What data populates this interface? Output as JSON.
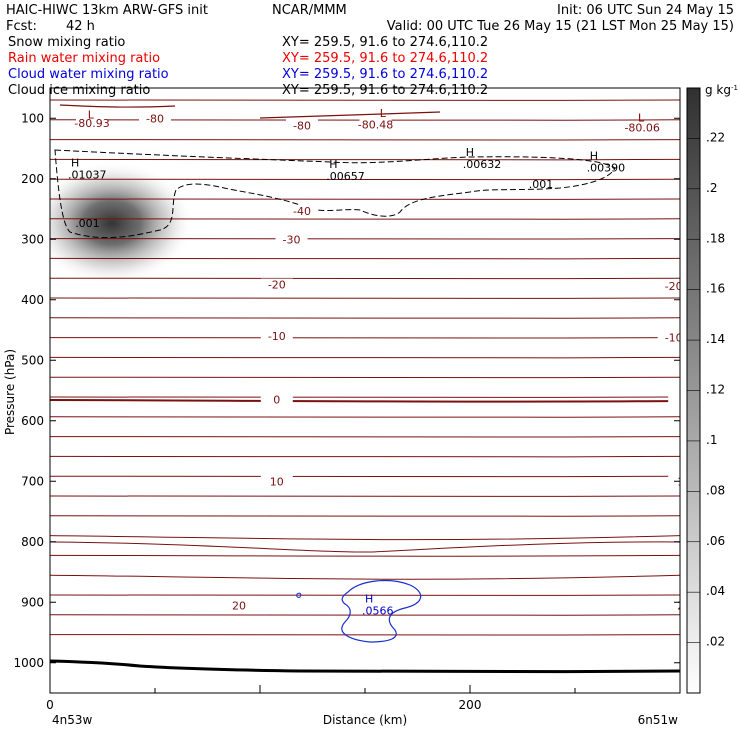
{
  "header": {
    "title": "HAIC-HIWC 13km ARW-GFS init",
    "org": "NCAR/MMM",
    "init": "Init: 06 UTC Sun 24 May 15",
    "fcst_label": "Fcst:",
    "fcst_value": "42 h",
    "valid": "Valid: 00 UTC Tue 26 May 15 (21 LST Mon 25 May 15)"
  },
  "fields": [
    {
      "name": "Snow mixing ratio",
      "xy": "XY= 259.5, 91.6 to 274.6,110.2",
      "color": "#000000"
    },
    {
      "name": "Rain water mixing ratio",
      "xy": "XY= 259.5, 91.6 to 274.6,110.2",
      "color": "#ee0000"
    },
    {
      "name": "Cloud water mixing ratio",
      "xy": "XY= 259.5, 91.6 to 274.6,110.2",
      "color": "#0000dd"
    },
    {
      "name": "Cloud ice mixing ratio",
      "xy": "XY= 259.5, 91.6 to 274.6,110.2",
      "color": "#000000"
    }
  ],
  "chart_data": {
    "type": "heatmap",
    "xlabel": "Distance (km)",
    "ylabel": "Pressure (hPa)",
    "xlim": [
      0,
      300
    ],
    "ylim": [
      1050,
      50
    ],
    "x_ticks": [
      "0",
      "200"
    ],
    "x_tick_values": [
      0,
      200
    ],
    "y_ticks": [
      "100",
      "200",
      "300",
      "400",
      "500",
      "600",
      "700",
      "800",
      "900",
      "1000"
    ],
    "y_tick_values": [
      100,
      200,
      300,
      400,
      500,
      600,
      700,
      800,
      900,
      1000
    ],
    "left_endpoint": "4n53w",
    "right_endpoint": "6n51w",
    "colorbar": {
      "unit": "g kg",
      "unit_exp": "-1",
      "ticks": [
        ".02",
        ".04",
        ".06",
        ".08",
        ".1",
        ".12",
        ".14",
        ".16",
        ".18",
        ".2",
        ".22"
      ],
      "tick_values": [
        0.02,
        0.04,
        0.06,
        0.08,
        0.1,
        0.12,
        0.14,
        0.16,
        0.18,
        0.2,
        0.22
      ],
      "range": [
        0,
        0.24
      ]
    },
    "shaded_maximum": {
      "x": 30,
      "p": 260,
      "value": 0.22
    },
    "temperature_contours": [
      {
        "label": "-80",
        "x": 50,
        "p": 100
      },
      {
        "label": "-80.93",
        "x": 20,
        "p": 108
      },
      {
        "label": "-80",
        "x": 120,
        "p": 112
      },
      {
        "label": "-80.48",
        "x": 155,
        "p": 110
      },
      {
        "label": "-80.06",
        "x": 282,
        "p": 115
      },
      {
        "label": "-40",
        "x": 120,
        "p": 253
      },
      {
        "label": "-30",
        "x": 115,
        "p": 300
      },
      {
        "label": "-20",
        "x": 108,
        "p": 375
      },
      {
        "label": "-20",
        "x": 297,
        "p": 377
      },
      {
        "label": "-10",
        "x": 108,
        "p": 460
      },
      {
        "label": "-10",
        "x": 297,
        "p": 462
      },
      {
        "label": "0",
        "x": 108,
        "p": 565
      },
      {
        "label": "0",
        "x": 302,
        "p": 565
      },
      {
        "label": "10",
        "x": 108,
        "p": 700
      },
      {
        "label": "10",
        "x": 302,
        "p": 700
      },
      {
        "label": "20",
        "x": 90,
        "p": 905
      },
      {
        "label": "20",
        "x": 302,
        "p": 905
      }
    ],
    "extrema": [
      {
        "type": "L",
        "x": 18,
        "p": 100,
        "color": "#8b0000"
      },
      {
        "type": "L",
        "x": 157,
        "p": 98,
        "color": "#8b0000"
      },
      {
        "type": "L",
        "x": 280,
        "p": 105,
        "color": "#8b0000"
      },
      {
        "type": "H",
        "x": 10,
        "p": 180,
        "value": ".01037",
        "color": "#000000"
      },
      {
        "type": "H",
        "x": 133,
        "p": 182,
        "value": ".00657",
        "color": "#000000"
      },
      {
        "type": "H",
        "x": 198,
        "p": 162,
        "value": ".00632",
        "color": "#000000"
      },
      {
        "type": "H",
        "x": 257,
        "p": 168,
        "value": ".00390",
        "color": "#000000"
      },
      {
        "type": "H",
        "x": 150,
        "p": 900,
        "value": ".0566",
        "color": "#0000cc"
      }
    ],
    "dashed_contour_labels": [
      {
        "label": ".001",
        "x": 12,
        "p": 280
      },
      {
        "label": ".001",
        "x": 228,
        "p": 215
      }
    ]
  }
}
